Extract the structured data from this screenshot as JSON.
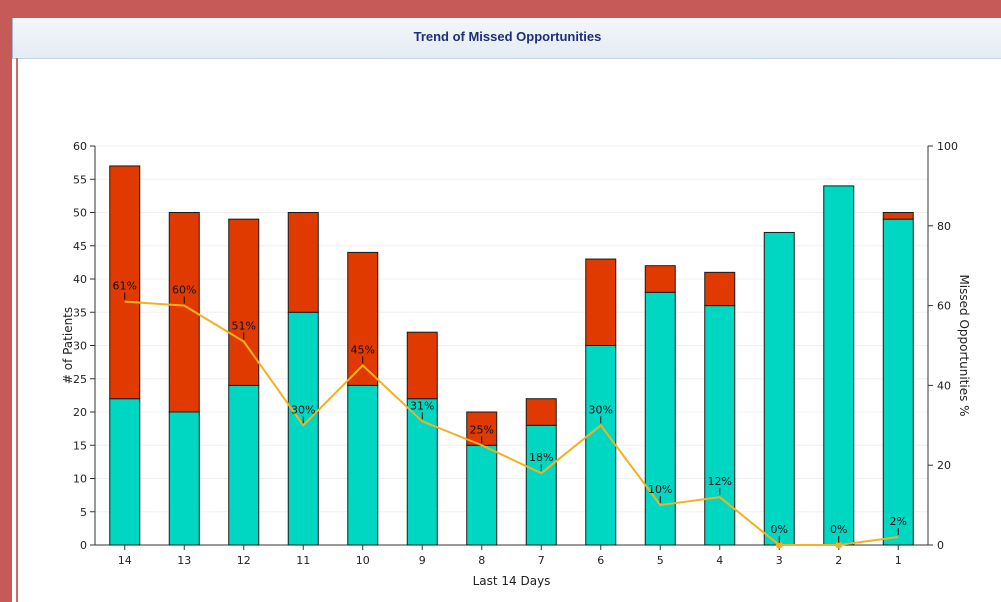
{
  "window": {
    "title": "Trend of Missed Opportunities"
  },
  "colors": {
    "frame": "#c65a58",
    "bar_base": "#00d7c3",
    "bar_missed": "#e03a00",
    "line": "#f5b021",
    "title": "#1f2d7a"
  },
  "chart_data": {
    "type": "bar",
    "title": "Trend of Missed Opportunities",
    "xlabel": "Last 14 Days",
    "ylabel": "# of Patients",
    "y2label": "Missed Opportunities %",
    "ylim": [
      0,
      60
    ],
    "y2lim": [
      0,
      100
    ],
    "yticks": [
      "0",
      "5",
      "10",
      "15",
      "20",
      "25",
      "30",
      "35",
      "40",
      "45",
      "50",
      "55",
      "60"
    ],
    "y2ticks": [
      "0",
      "20",
      "40",
      "60",
      "80",
      "100"
    ],
    "categories": [
      "14",
      "13",
      "12",
      "11",
      "10",
      "9",
      "8",
      "7",
      "6",
      "5",
      "4",
      "3",
      "2",
      "1"
    ],
    "series": [
      {
        "values": [
          22,
          20,
          24,
          35,
          24,
          22,
          15,
          18,
          30,
          38,
          36,
          47,
          54,
          49
        ]
      },
      {
        "values": [
          35,
          30,
          25,
          15,
          20,
          10,
          5,
          4,
          13,
          4,
          5,
          0,
          0,
          1
        ]
      },
      {
        "values": [
          61,
          60,
          51,
          30,
          45,
          31,
          25,
          18,
          30,
          10,
          12,
          0,
          0,
          2
        ]
      }
    ],
    "data_labels": [
      "61%",
      "60%",
      "51%",
      "30%",
      "45%",
      "31%",
      "25%",
      "18%",
      "30%",
      "10%",
      "12%",
      "0%",
      "0%",
      "2%"
    ],
    "grid": true
  }
}
